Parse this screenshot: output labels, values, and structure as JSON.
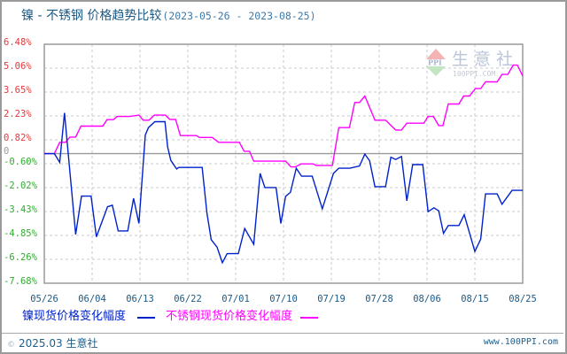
{
  "header": {
    "title": "镍 - 不锈钢 价格趋势比较",
    "date_range": "(2023-05-26 - 2023-08-25)"
  },
  "watermark": {
    "logo_text": "PPI",
    "brand_cn": "生意社",
    "brand_en": "100PPI.COM"
  },
  "legend": {
    "items": [
      {
        "label": "镍现货价格变化幅度",
        "color": "#0022cc"
      },
      {
        "label": "不锈钢现货价格变化幅度",
        "color": "#ff00ff"
      }
    ]
  },
  "footer": {
    "copyright_symbol": "©",
    "copyright": "2025.03 生意社",
    "site": "www.100PPI.com"
  },
  "colors": {
    "positive_tick": "#e2383a",
    "negative_tick": "#2fae2f",
    "grid": "#c8c8c8",
    "axis": "#9a9a9a"
  },
  "chart_data": {
    "type": "line",
    "title": "镍 - 不锈钢 价格趋势比较 (2023-05-26 - 2023-08-25)",
    "xlabel": "",
    "ylabel": "价格变化幅度 (%)",
    "x_unit": "days since 05/26",
    "xlim": [
      0,
      90
    ],
    "ylim": [
      -7.68,
      6.48
    ],
    "grid": true,
    "legend_position": "bottom",
    "x_ticks": [
      {
        "day": 0,
        "label": "05/26"
      },
      {
        "day": 9,
        "label": "06/04"
      },
      {
        "day": 18,
        "label": "06/13"
      },
      {
        "day": 27,
        "label": "06/22"
      },
      {
        "day": 36,
        "label": "07/01"
      },
      {
        "day": 45,
        "label": "07/10"
      },
      {
        "day": 54,
        "label": "07/19"
      },
      {
        "day": 63,
        "label": "07/28"
      },
      {
        "day": 72,
        "label": "08/06"
      },
      {
        "day": 81,
        "label": "08/15"
      },
      {
        "day": 90,
        "label": "08/25"
      }
    ],
    "y_ticks": [
      "6.48%",
      "5.06%",
      "3.65%",
      "2.23%",
      "0.82%",
      "-0.60%",
      "-2.02%",
      "-3.43%",
      "-4.85%",
      "-6.26%",
      "-7.68%"
    ],
    "y_zero_label": "0",
    "series": [
      {
        "name": "镍现货价格变化幅度",
        "color": "#0022cc",
        "points": [
          [
            0,
            0
          ],
          [
            1.9,
            0
          ],
          [
            2.9,
            -0.52
          ],
          [
            3.8,
            2.41
          ],
          [
            5.9,
            -4.79
          ],
          [
            7,
            -2.52
          ],
          [
            8.8,
            -2.52
          ],
          [
            9.8,
            -4.93
          ],
          [
            11.9,
            -3.15
          ],
          [
            12.8,
            -3.06
          ],
          [
            13.9,
            -4.58
          ],
          [
            15.7,
            -4.58
          ],
          [
            16.8,
            -2.65
          ],
          [
            17.8,
            -4.14
          ],
          [
            19,
            1.1
          ],
          [
            19.6,
            1.54
          ],
          [
            20.8,
            1.89
          ],
          [
            22.7,
            1.89
          ],
          [
            23.2,
            0.4
          ],
          [
            23.8,
            -0.4
          ],
          [
            24.5,
            -0.73
          ],
          [
            24.9,
            -0.91
          ],
          [
            25.3,
            -0.82
          ],
          [
            29.7,
            -0.82
          ],
          [
            30.6,
            -3.53
          ],
          [
            31.4,
            -5.1
          ],
          [
            32.5,
            -5.54
          ],
          [
            33.5,
            -6.47
          ],
          [
            34.4,
            -5.93
          ],
          [
            36.5,
            -5.93
          ],
          [
            37.7,
            -4.44
          ],
          [
            39.4,
            -5.37
          ],
          [
            40.6,
            -1.17
          ],
          [
            41.5,
            -2.01
          ],
          [
            43.6,
            -2.01
          ],
          [
            44.5,
            -4.14
          ],
          [
            45.4,
            -2.53
          ],
          [
            46.3,
            -2.3
          ],
          [
            47.4,
            -0.87
          ],
          [
            48.4,
            -1.34
          ],
          [
            50.4,
            -1.34
          ],
          [
            52.3,
            -3.27
          ],
          [
            54.4,
            -1.17
          ],
          [
            55.4,
            -0.87
          ],
          [
            57.5,
            -0.87
          ],
          [
            59.3,
            -0.73
          ],
          [
            60.3,
            -0.03
          ],
          [
            61.2,
            -0.42
          ],
          [
            62.2,
            -1.96
          ],
          [
            64.2,
            -1.96
          ],
          [
            65.2,
            -0.21
          ],
          [
            66.1,
            -0.35
          ],
          [
            67.2,
            -0.17
          ],
          [
            68.2,
            -2.8
          ],
          [
            69.3,
            -0.65
          ],
          [
            71.2,
            -0.65
          ],
          [
            72.2,
            -3.44
          ],
          [
            73.3,
            -3.21
          ],
          [
            74.2,
            -3.39
          ],
          [
            75.1,
            -4.72
          ],
          [
            76,
            -4.26
          ],
          [
            78,
            -4.26
          ],
          [
            79,
            -3.62
          ],
          [
            81,
            -5.8
          ],
          [
            82.1,
            -5.07
          ],
          [
            83,
            -2.39
          ],
          [
            85.2,
            -2.39
          ],
          [
            86.1,
            -3.0
          ],
          [
            88,
            -2.18
          ],
          [
            90,
            -2.18
          ]
        ]
      },
      {
        "name": "不锈钢现货价格变化幅度",
        "color": "#ff00ff",
        "points": [
          [
            0,
            0
          ],
          [
            1.9,
            0
          ],
          [
            2.9,
            0.67
          ],
          [
            4,
            0.67
          ],
          [
            4.8,
            0.98
          ],
          [
            5.9,
            0.98
          ],
          [
            6.9,
            1.63
          ],
          [
            11,
            1.63
          ],
          [
            11.8,
            2.01
          ],
          [
            13,
            2.01
          ],
          [
            13.7,
            2.2
          ],
          [
            16.1,
            2.2
          ],
          [
            17.8,
            2.28
          ],
          [
            18.6,
            1.98
          ],
          [
            19.7,
            1.98
          ],
          [
            20.7,
            2.28
          ],
          [
            22.8,
            2.28
          ],
          [
            23.6,
            2.03
          ],
          [
            24.7,
            2.03
          ],
          [
            25.6,
            1.07
          ],
          [
            28.6,
            1.07
          ],
          [
            29.2,
            0.96
          ],
          [
            31.6,
            0.96
          ],
          [
            32.8,
            0.67
          ],
          [
            36.7,
            0.67
          ],
          [
            37.6,
            0.14
          ],
          [
            38.6,
            0.14
          ],
          [
            39.4,
            -0.45
          ],
          [
            45.4,
            -0.45
          ],
          [
            46.4,
            -0.79
          ],
          [
            47.2,
            -0.79
          ],
          [
            48.3,
            -0.61
          ],
          [
            50.6,
            -0.61
          ],
          [
            51.1,
            -0.7
          ],
          [
            54.2,
            -0.7
          ],
          [
            55.4,
            1.54
          ],
          [
            57.4,
            1.54
          ],
          [
            58.4,
            3.03
          ],
          [
            59.3,
            3.03
          ],
          [
            60.3,
            3.41
          ],
          [
            62.2,
            1.98
          ],
          [
            64.2,
            1.98
          ],
          [
            66.1,
            1.4
          ],
          [
            67.2,
            1.4
          ],
          [
            68.2,
            1.8
          ],
          [
            71.4,
            1.8
          ],
          [
            72.2,
            2.2
          ],
          [
            73.2,
            2.2
          ],
          [
            74.2,
            1.66
          ],
          [
            75,
            1.66
          ],
          [
            76,
            2.94
          ],
          [
            78,
            2.94
          ],
          [
            78.9,
            3.41
          ],
          [
            80,
            3.41
          ],
          [
            81.1,
            3.85
          ],
          [
            82.1,
            3.85
          ],
          [
            83,
            4.25
          ],
          [
            85.2,
            4.25
          ],
          [
            86.1,
            4.69
          ],
          [
            87.2,
            4.69
          ],
          [
            88.2,
            5.24
          ],
          [
            89,
            5.24
          ],
          [
            90,
            4.6
          ]
        ]
      }
    ]
  }
}
